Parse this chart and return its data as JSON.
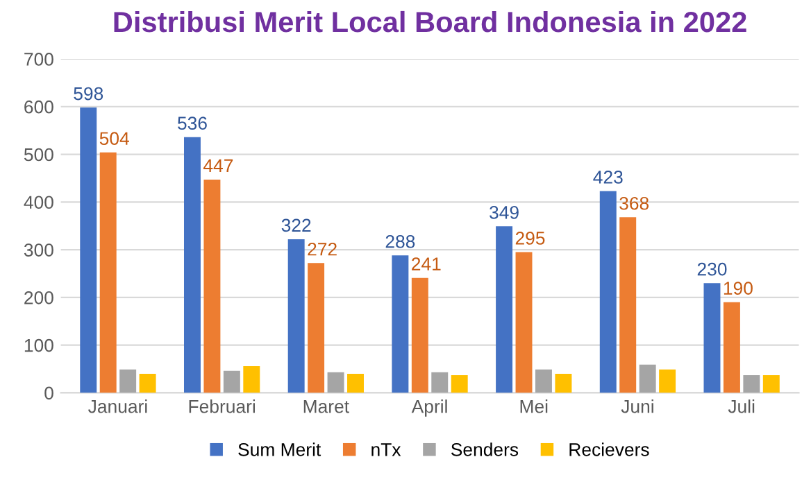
{
  "chart_data": {
    "type": "bar",
    "title": "Distribusi Merit Local Board Indonesia in 2022",
    "categories": [
      "Januari",
      "Februari",
      "Maret",
      "April",
      "Mei",
      "Juni",
      "Juli"
    ],
    "series": [
      {
        "name": "Sum Merit",
        "color": "#4472c4",
        "values": [
          598,
          536,
          322,
          288,
          349,
          423,
          230
        ],
        "value_labels": [
          "598",
          "536",
          "322",
          "288",
          "349",
          "423",
          "230"
        ]
      },
      {
        "name": "nTx",
        "color": "#ed7d31",
        "values": [
          504,
          447,
          272,
          241,
          295,
          368,
          190
        ],
        "value_labels": [
          "504",
          "447",
          "272",
          "241",
          "295",
          "368",
          "190"
        ]
      },
      {
        "name": "Senders",
        "color": "#a5a5a5",
        "values": [
          49,
          46,
          43,
          43,
          49,
          59,
          37
        ]
      },
      {
        "name": "Recievers",
        "color": "#ffc000",
        "values": [
          40,
          56,
          40,
          37,
          40,
          49,
          37
        ]
      }
    ],
    "ylim": [
      0,
      700
    ],
    "yticks": [
      0,
      100,
      200,
      300,
      400,
      500,
      600,
      700
    ],
    "grid": "y",
    "legend": "bottom"
  }
}
